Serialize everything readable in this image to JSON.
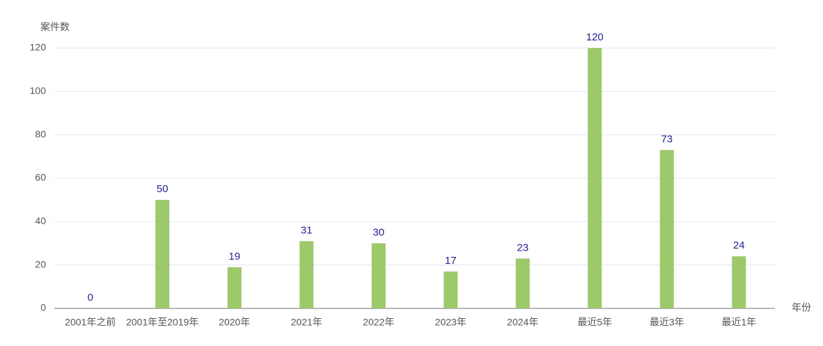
{
  "chart_data": {
    "type": "bar",
    "y_axis_label": "案件数",
    "x_axis_label": "年份",
    "categories": [
      "2001年之前",
      "2001年至2019年",
      "2020年",
      "2021年",
      "2022年",
      "2023年",
      "2024年",
      "最近5年",
      "最近3年",
      "最近1年"
    ],
    "values": [
      0,
      50,
      19,
      31,
      30,
      17,
      23,
      120,
      73,
      24
    ],
    "color": "#9dc96b",
    "label_color": "#1f1fa8",
    "ylim": [
      0,
      120
    ],
    "yticks": [
      0,
      20,
      40,
      60,
      80,
      100,
      120
    ],
    "grid": true
  }
}
